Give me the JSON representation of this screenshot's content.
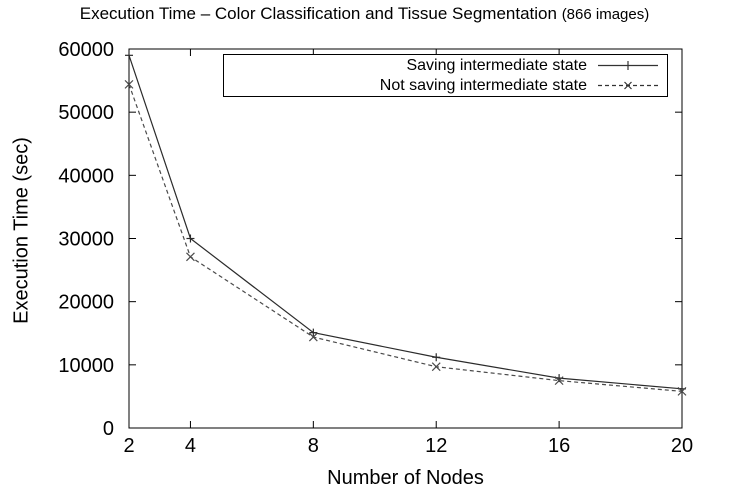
{
  "title": {
    "main": "Execution Time – Color Classification and Tissue Segmentation ",
    "suffix": "(866 images)"
  },
  "chart_data": {
    "type": "line",
    "x": [
      2,
      4,
      8,
      12,
      16,
      20
    ],
    "series": [
      {
        "name": "Saving intermediate state",
        "line_style": "solid",
        "marker": "plus",
        "color": "#2b2b2b",
        "values": [
          59000,
          30000,
          15100,
          11200,
          7900,
          6200
        ]
      },
      {
        "name": "Not saving intermediate state",
        "line_style": "dashed",
        "marker": "x",
        "color": "#4a4a4a",
        "values": [
          54400,
          27100,
          14400,
          9700,
          7500,
          5800
        ]
      }
    ],
    "xlabel": "Number of Nodes",
    "ylabel": "Execution Time (sec)",
    "xticks": [
      2,
      4,
      8,
      12,
      16,
      20
    ],
    "yticks": [
      0,
      10000,
      20000,
      30000,
      40000,
      50000,
      60000
    ],
    "xlim": [
      2,
      20
    ],
    "ylim": [
      0,
      60000
    ],
    "grid": false,
    "legend_position": "top-center",
    "background": "#ffffff",
    "axis_color": "#000000"
  }
}
